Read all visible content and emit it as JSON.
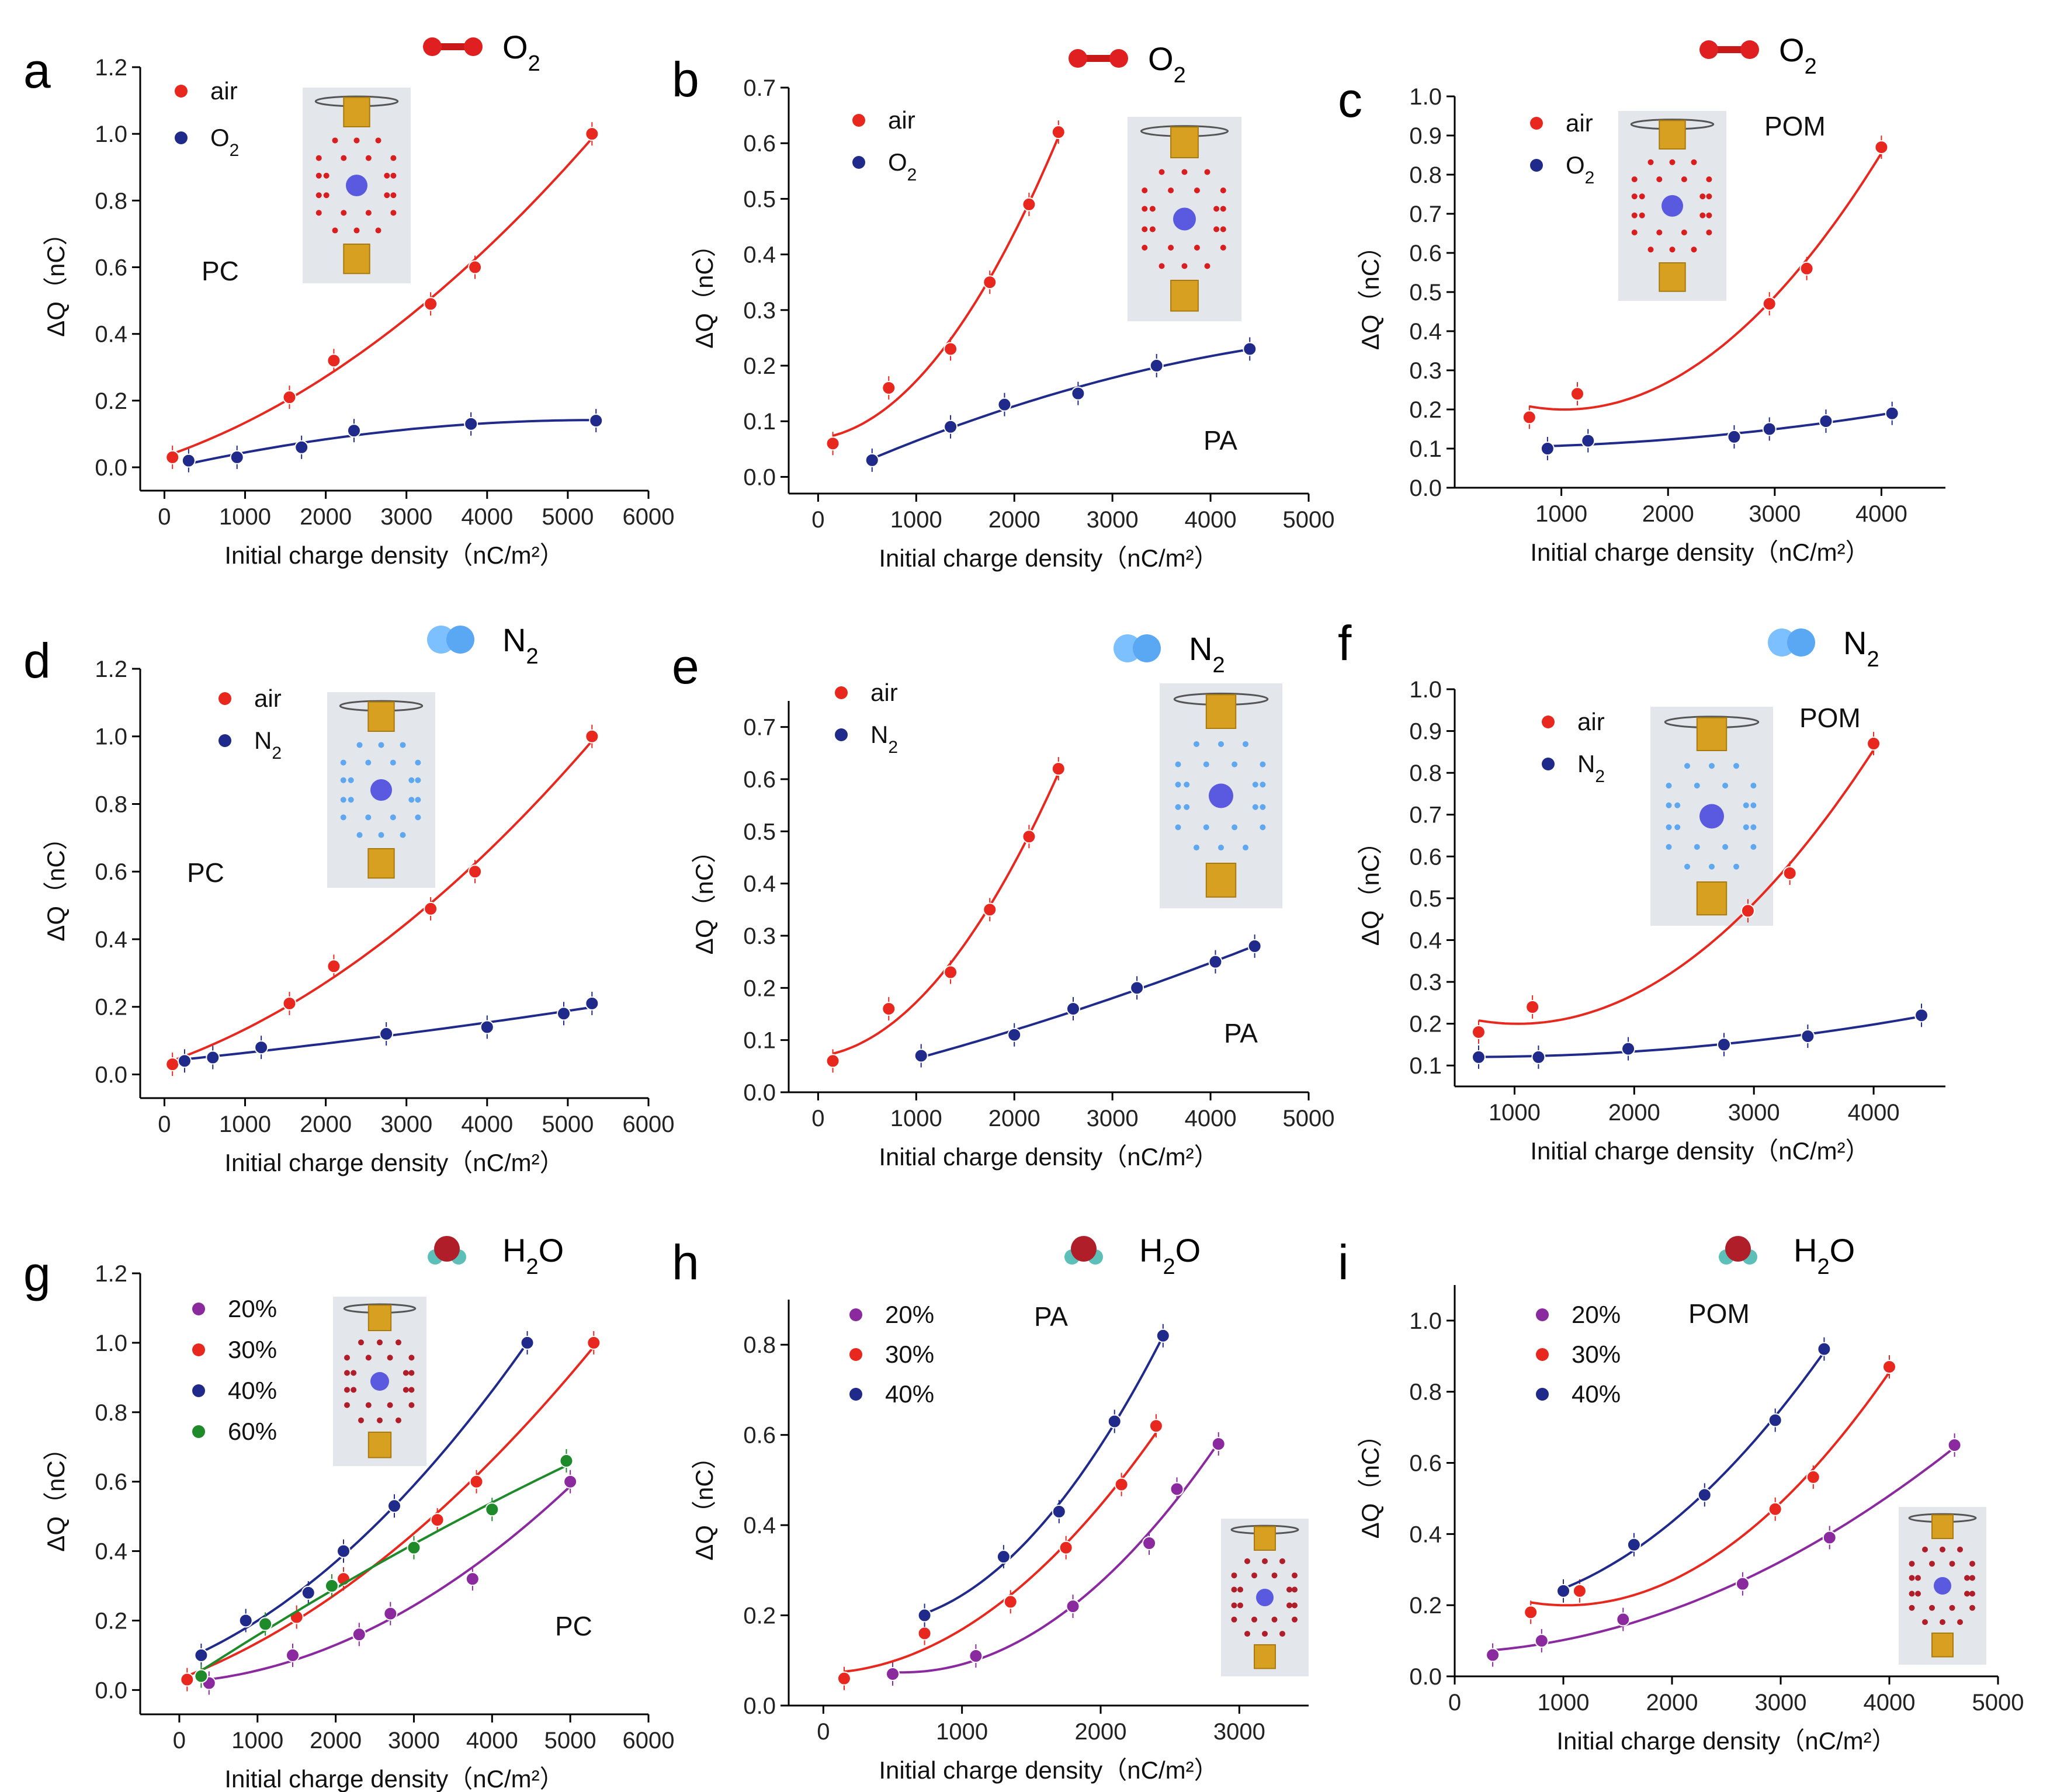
{
  "colors": {
    "air": "#e8281e",
    "O2": "#1f2a8a",
    "N2": "#1f2a8a",
    "20%": "#8a2a9e",
    "30%": "#e8281e",
    "40%": "#1f2a8a",
    "60%": "#1e8a2a",
    "o2_icon": "#d81e1e",
    "n2_icon": "#5fa8f0",
    "h2o_icon": "#b01e2a"
  },
  "chart_data": [
    {
      "panel": "a",
      "type": "scatter",
      "molecule": "O2",
      "material": "PC",
      "xlabel": "Initial charge density（nC/m²）",
      "ylabel": "ΔQ（nC）",
      "xlim": [
        -300,
        6000
      ],
      "ylim": [
        -0.07,
        1.2
      ],
      "xticks": [
        "0",
        "1000",
        "2000",
        "3000",
        "4000",
        "5000",
        "6000"
      ],
      "yticks": [
        "0.0",
        "0.2",
        "0.4",
        "0.6",
        "0.8",
        "1.0",
        "1.2"
      ],
      "series": [
        {
          "name": "air",
          "x": [
            100,
            1550,
            2100,
            3300,
            3850,
            5300
          ],
          "y": [
            0.03,
            0.21,
            0.32,
            0.49,
            0.6,
            1.0
          ]
        },
        {
          "name": "O2",
          "x": [
            300,
            900,
            1700,
            2350,
            3800,
            5350
          ],
          "y": [
            0.02,
            0.03,
            0.06,
            0.11,
            0.13,
            0.14
          ]
        }
      ]
    },
    {
      "panel": "b",
      "type": "scatter",
      "molecule": "O2",
      "material": "PA",
      "xlabel": "Initial charge density（nC/m²）",
      "ylabel": "ΔQ（nC）",
      "xlim": [
        -300,
        5000
      ],
      "ylim": [
        -0.03,
        0.7
      ],
      "xticks": [
        "0",
        "1000",
        "2000",
        "3000",
        "4000",
        "5000"
      ],
      "yticks": [
        "0.0",
        "0.1",
        "0.2",
        "0.3",
        "0.4",
        "0.5",
        "0.6",
        "0.7"
      ],
      "series": [
        {
          "name": "air",
          "x": [
            150,
            720,
            1350,
            1750,
            2150,
            2450
          ],
          "y": [
            0.06,
            0.16,
            0.23,
            0.35,
            0.49,
            0.62
          ]
        },
        {
          "name": "O2",
          "x": [
            550,
            1350,
            1900,
            2650,
            3450,
            4400
          ],
          "y": [
            0.03,
            0.09,
            0.13,
            0.15,
            0.2,
            0.23
          ]
        }
      ]
    },
    {
      "panel": "c",
      "type": "scatter",
      "molecule": "O2",
      "material": "POM",
      "xlabel": "Initial charge density（nC/m²）",
      "ylabel": "ΔQ（nC）",
      "xlim": [
        0,
        4600
      ],
      "ylim": [
        0.0,
        1.0
      ],
      "xticks": [
        "1000",
        "2000",
        "3000",
        "4000"
      ],
      "yticks": [
        "0.0",
        "0.1",
        "0.2",
        "0.3",
        "0.4",
        "0.5",
        "0.6",
        "0.7",
        "0.8",
        "0.9",
        "1.0"
      ],
      "series": [
        {
          "name": "air",
          "x": [
            700,
            1150,
            2950,
            3300,
            4000
          ],
          "y": [
            0.18,
            0.24,
            0.47,
            0.56,
            0.87
          ]
        },
        {
          "name": "O2",
          "x": [
            870,
            1250,
            2620,
            2950,
            3480,
            4100
          ],
          "y": [
            0.1,
            0.12,
            0.13,
            0.15,
            0.17,
            0.19
          ]
        }
      ]
    },
    {
      "panel": "d",
      "type": "scatter",
      "molecule": "N2",
      "material": "PC",
      "xlabel": "Initial charge density（nC/m²）",
      "ylabel": "ΔQ（nC）",
      "xlim": [
        -300,
        6000
      ],
      "ylim": [
        -0.07,
        1.2
      ],
      "xticks": [
        "0",
        "1000",
        "2000",
        "3000",
        "4000",
        "5000",
        "6000"
      ],
      "yticks": [
        "0.0",
        "0.2",
        "0.4",
        "0.6",
        "0.8",
        "1.0",
        "1.2"
      ],
      "series": [
        {
          "name": "air",
          "x": [
            100,
            1550,
            2100,
            3300,
            3850,
            5300
          ],
          "y": [
            0.03,
            0.21,
            0.32,
            0.49,
            0.6,
            1.0
          ]
        },
        {
          "name": "N2",
          "x": [
            250,
            600,
            1200,
            2750,
            4000,
            4950,
            5300
          ],
          "y": [
            0.04,
            0.05,
            0.08,
            0.12,
            0.14,
            0.18,
            0.21
          ]
        }
      ]
    },
    {
      "panel": "e",
      "type": "scatter",
      "molecule": "N2",
      "material": "PA",
      "xlabel": "Initial charge density（nC/m²）",
      "ylabel": "ΔQ（nC）",
      "xlim": [
        -300,
        5000
      ],
      "ylim": [
        0.0,
        0.75
      ],
      "xticks": [
        "0",
        "1000",
        "2000",
        "3000",
        "4000",
        "5000"
      ],
      "yticks": [
        "0.0",
        "0.1",
        "0.2",
        "0.3",
        "0.4",
        "0.5",
        "0.6",
        "0.7"
      ],
      "series": [
        {
          "name": "air",
          "x": [
            150,
            720,
            1350,
            1750,
            2150,
            2450
          ],
          "y": [
            0.06,
            0.16,
            0.23,
            0.35,
            0.49,
            0.62
          ]
        },
        {
          "name": "N2",
          "x": [
            1050,
            2000,
            2600,
            3250,
            4050,
            4450
          ],
          "y": [
            0.07,
            0.11,
            0.16,
            0.2,
            0.25,
            0.28
          ]
        }
      ]
    },
    {
      "panel": "f",
      "type": "scatter",
      "molecule": "N2",
      "material": "POM",
      "xlabel": "Initial charge density（nC/m²）",
      "ylabel": "ΔQ（nC）",
      "xlim": [
        500,
        4600
      ],
      "ylim": [
        0.05,
        1.0
      ],
      "xticks": [
        "1000",
        "2000",
        "3000",
        "4000"
      ],
      "yticks": [
        "0.1",
        "0.2",
        "0.3",
        "0.4",
        "0.5",
        "0.6",
        "0.7",
        "0.8",
        "0.9",
        "1.0"
      ],
      "series": [
        {
          "name": "air",
          "x": [
            700,
            1150,
            2950,
            3300,
            4000
          ],
          "y": [
            0.18,
            0.24,
            0.47,
            0.56,
            0.87
          ]
        },
        {
          "name": "N2",
          "x": [
            700,
            1200,
            1950,
            2750,
            3450,
            4400
          ],
          "y": [
            0.12,
            0.12,
            0.14,
            0.15,
            0.17,
            0.22
          ]
        }
      ]
    },
    {
      "panel": "g",
      "type": "scatter",
      "molecule": "H2O",
      "material": "PC",
      "xlabel": "Initial charge density（nC/m²）",
      "ylabel": "ΔQ（nC）",
      "xlim": [
        -500,
        6000
      ],
      "ylim": [
        -0.07,
        1.2
      ],
      "xticks": [
        "0",
        "1000",
        "2000",
        "3000",
        "4000",
        "5000",
        "6000"
      ],
      "yticks": [
        "0.0",
        "0.2",
        "0.4",
        "0.6",
        "0.8",
        "1.0",
        "1.2"
      ],
      "series": [
        {
          "name": "20%",
          "x": [
            380,
            1450,
            2300,
            2700,
            3750,
            5000
          ],
          "y": [
            0.02,
            0.1,
            0.16,
            0.22,
            0.32,
            0.6
          ]
        },
        {
          "name": "30%",
          "x": [
            100,
            1500,
            2100,
            3300,
            3800,
            5300
          ],
          "y": [
            0.03,
            0.21,
            0.32,
            0.49,
            0.6,
            1.0
          ]
        },
        {
          "name": "40%",
          "x": [
            280,
            850,
            1650,
            2100,
            2750,
            4450
          ],
          "y": [
            0.1,
            0.2,
            0.28,
            0.4,
            0.53,
            1.0
          ]
        },
        {
          "name": "60%",
          "x": [
            280,
            1100,
            1950,
            3000,
            4000,
            4950
          ],
          "y": [
            0.04,
            0.19,
            0.3,
            0.41,
            0.52,
            0.66
          ]
        }
      ]
    },
    {
      "panel": "h",
      "type": "scatter",
      "molecule": "H2O",
      "material": "PA",
      "xlabel": "Initial charge density（nC/m²）",
      "ylabel": "ΔQ（nC）",
      "xlim": [
        -250,
        3500
      ],
      "ylim": [
        0.0,
        0.9
      ],
      "xticks": [
        "0",
        "1000",
        "2000",
        "3000"
      ],
      "yticks": [
        "0.0",
        "0.2",
        "0.4",
        "0.6",
        "0.8"
      ],
      "series": [
        {
          "name": "20%",
          "x": [
            500,
            1100,
            1800,
            2350,
            2550,
            2850
          ],
          "y": [
            0.07,
            0.11,
            0.22,
            0.36,
            0.48,
            0.58
          ]
        },
        {
          "name": "30%",
          "x": [
            150,
            730,
            1350,
            1750,
            2150,
            2400
          ],
          "y": [
            0.06,
            0.16,
            0.23,
            0.35,
            0.49,
            0.62
          ]
        },
        {
          "name": "40%",
          "x": [
            730,
            1300,
            1700,
            2100,
            2450
          ],
          "y": [
            0.2,
            0.33,
            0.43,
            0.63,
            0.82
          ]
        }
      ]
    },
    {
      "panel": "i",
      "type": "scatter",
      "molecule": "H2O",
      "material": "POM",
      "xlabel": "Initial charge density（nC/m²）",
      "ylabel": "ΔQ（nC）",
      "xlim": [
        0,
        5000
      ],
      "ylim": [
        0.0,
        1.1
      ],
      "xticks": [
        "0",
        "1000",
        "2000",
        "3000",
        "4000",
        "5000"
      ],
      "yticks": [
        "0.0",
        "0.2",
        "0.4",
        "0.6",
        "0.8",
        "1.0"
      ],
      "series": [
        {
          "name": "20%",
          "x": [
            350,
            800,
            1550,
            2650,
            3450,
            4600
          ],
          "y": [
            0.06,
            0.1,
            0.16,
            0.26,
            0.39,
            0.65
          ]
        },
        {
          "name": "30%",
          "x": [
            700,
            1150,
            2950,
            3300,
            4000
          ],
          "y": [
            0.18,
            0.24,
            0.47,
            0.56,
            0.87
          ]
        },
        {
          "name": "40%",
          "x": [
            1000,
            1650,
            2300,
            2950,
            3400
          ],
          "y": [
            0.24,
            0.37,
            0.51,
            0.72,
            0.92
          ]
        }
      ]
    }
  ]
}
